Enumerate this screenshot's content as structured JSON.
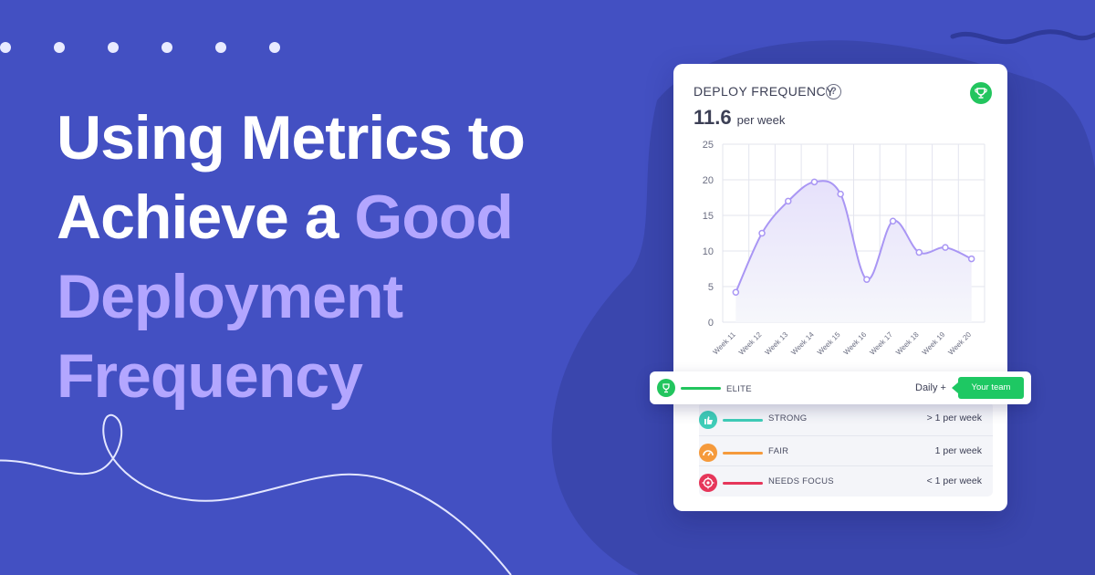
{
  "headline": {
    "line1": "Using Metrics to",
    "line2a": "Achieve a ",
    "line2b": "Good",
    "line3": "Deployment",
    "line4": "Frequency"
  },
  "card": {
    "title": "DEPLOY FREQUENCY",
    "help_glyph": "?",
    "metric_value": "11.6",
    "metric_unit": "per week"
  },
  "chart_data": {
    "type": "area",
    "title": "",
    "xlabel": "",
    "ylabel": "",
    "x": [
      "Week 11",
      "Week 12",
      "Week 13",
      "Week 14",
      "Week 15",
      "Week 16",
      "Week 17",
      "Week 18",
      "Week 19",
      "Week 20"
    ],
    "values": [
      4.2,
      12.5,
      17.0,
      19.7,
      18.0,
      6.0,
      14.2,
      9.8,
      10.5,
      8.9
    ],
    "ylim": [
      0,
      25
    ],
    "yticks": [
      0,
      5,
      10,
      15,
      20,
      25
    ],
    "grid": true,
    "colors": {
      "line": "#a996f4",
      "fill_top": "#e6e1fb",
      "fill_bottom": "#f6f7fb",
      "grid": "#e3e4ee",
      "axis_text": "#6b6e82"
    }
  },
  "tiers": {
    "elite": {
      "label": "ELITE",
      "freq": "Daily +",
      "tag": "Your team",
      "color": "#22c55e",
      "icon": "trophy-icon"
    },
    "rows": [
      {
        "label": "STRONG",
        "freq": "> 1 per week",
        "color": "#3fcdb8",
        "icon": "thumbs-up-icon"
      },
      {
        "label": "FAIR",
        "freq": "1 per week",
        "color": "#f59a3c",
        "icon": "gauge-icon"
      },
      {
        "label": "NEEDS FOCUS",
        "freq": "< 1 per week",
        "color": "#e6365a",
        "icon": "target-icon"
      }
    ]
  },
  "colors": {
    "background": "#4350c2",
    "blob": "#3a46ad",
    "accent_text": "#b3a6ff"
  }
}
